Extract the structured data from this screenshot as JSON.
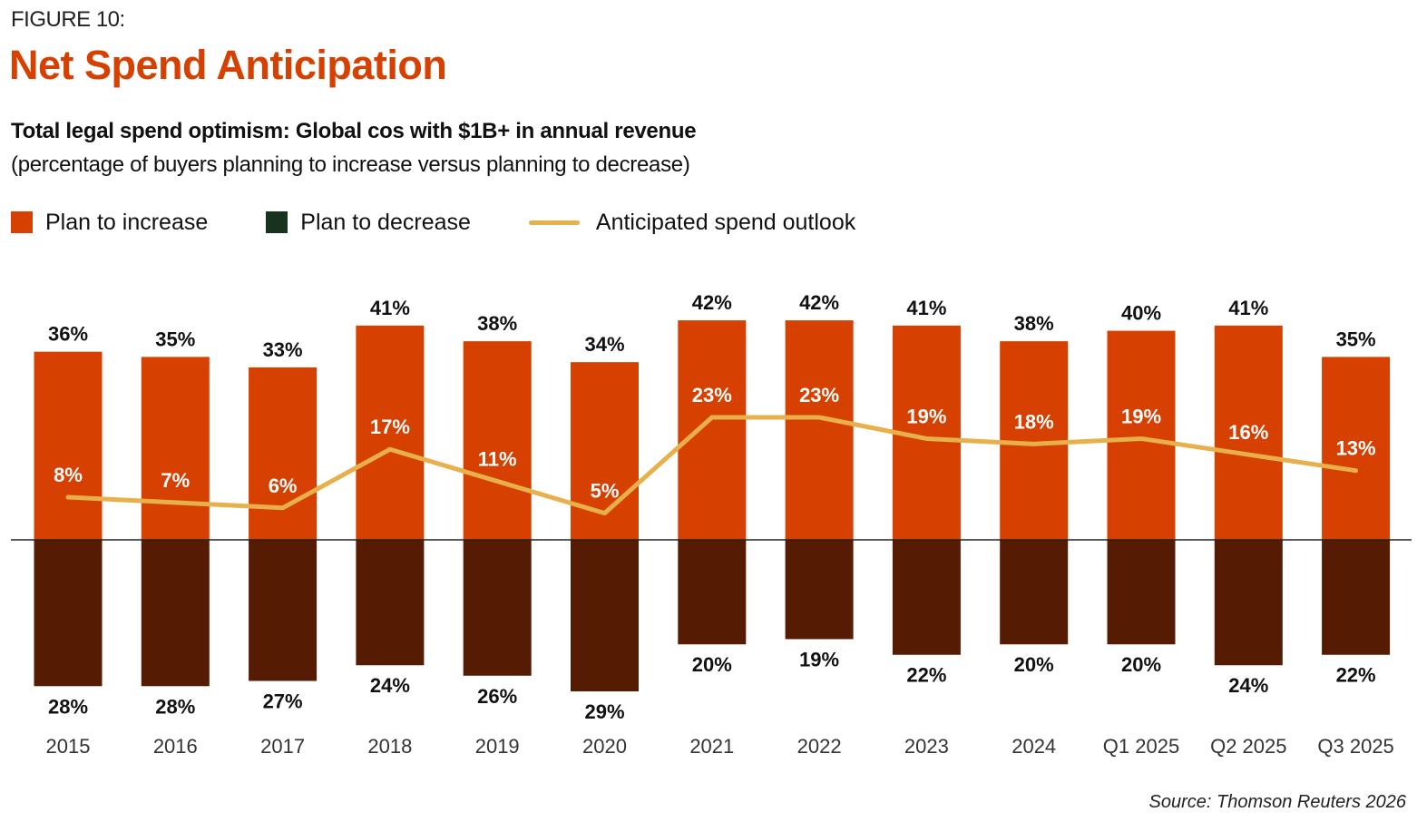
{
  "figure_label": "FIGURE 10:",
  "title": "Net Spend Anticipation",
  "subtitle": "Total legal spend optimism: Global cos with $1B+ in annual revenue",
  "subnote": "(percentage of buyers planning to increase versus planning to decrease)",
  "source": "Source: Thomson Reuters 2026",
  "colors": {
    "increase": "#d64000",
    "decrease": "#561b03",
    "legend_decrease": "#17321f",
    "line": "#e8b04a",
    "title": "#d64000",
    "baseline": "#222222"
  },
  "chart_data": {
    "type": "bar",
    "title": "Net Spend Anticipation",
    "subtitle": "Total legal spend optimism: Global cos with $1B+ in annual revenue",
    "xlabel": "",
    "ylabel": "",
    "grid": false,
    "legend_position": "top-left",
    "ylim": [
      -30,
      45
    ],
    "categories": [
      "2015",
      "2016",
      "2017",
      "2018",
      "2019",
      "2020",
      "2021",
      "2022",
      "2023",
      "2024",
      "Q1 2025",
      "Q2 2025",
      "Q3 2025"
    ],
    "series": [
      {
        "name": "Plan to increase",
        "type": "bar",
        "values": [
          36,
          35,
          33,
          41,
          38,
          34,
          42,
          42,
          41,
          38,
          40,
          41,
          35
        ],
        "labels": [
          "36%",
          "35%",
          "33%",
          "41%",
          "38%",
          "34%",
          "42%",
          "42%",
          "41%",
          "38%",
          "40%",
          "41%",
          "35%"
        ]
      },
      {
        "name": "Plan to decrease",
        "type": "bar",
        "values": [
          28,
          28,
          27,
          24,
          26,
          29,
          20,
          19,
          22,
          20,
          20,
          24,
          22
        ],
        "labels": [
          "28%",
          "28%",
          "27%",
          "24%",
          "26%",
          "29%",
          "20%",
          "19%",
          "22%",
          "20%",
          "20%",
          "24%",
          "22%"
        ]
      },
      {
        "name": "Anticipated spend outlook",
        "type": "line",
        "values": [
          8,
          7,
          6,
          17,
          11,
          5,
          23,
          23,
          19,
          18,
          19,
          16,
          13
        ],
        "labels": [
          "8%",
          "7%",
          "6%",
          "17%",
          "11%",
          "5%",
          "23%",
          "23%",
          "19%",
          "18%",
          "19%",
          "16%",
          "13%"
        ]
      }
    ]
  }
}
